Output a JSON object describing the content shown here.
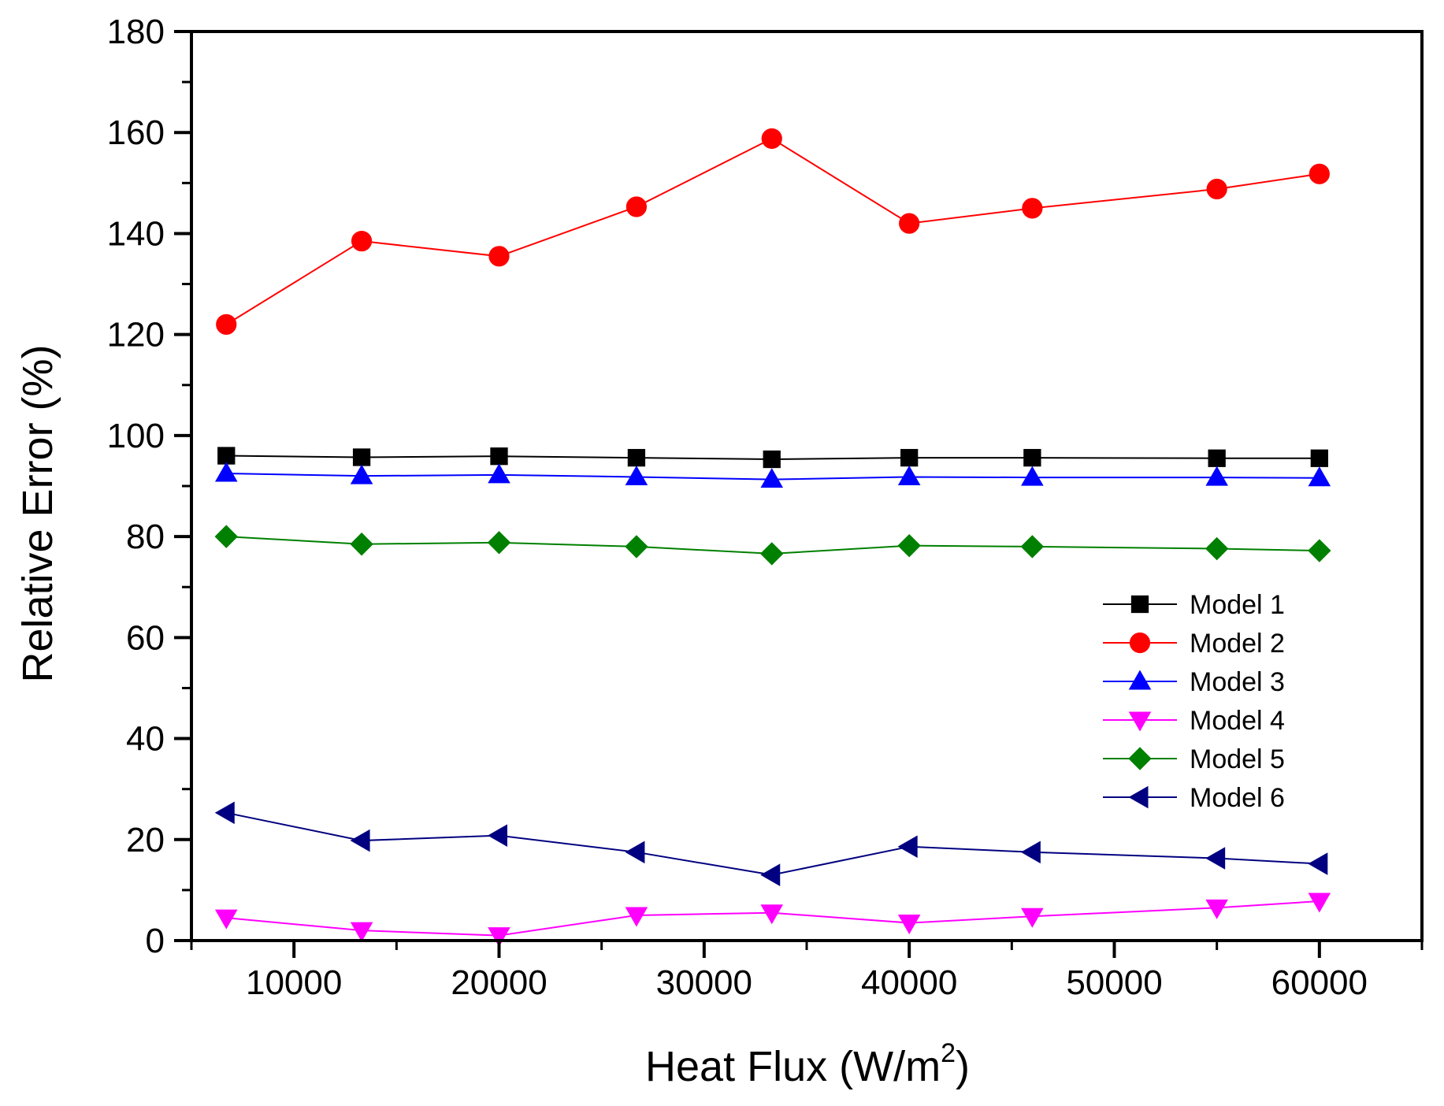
{
  "chart_data": {
    "type": "line",
    "title": "",
    "xlabel": "Heat Flux (W/m",
    "xlabel_sup": "2",
    "xlabel_close": ")",
    "ylabel": "Relative Error (%)",
    "xlim": [
      5000,
      65000
    ],
    "ylim": [
      0,
      180
    ],
    "x_ticks": [
      10000,
      20000,
      30000,
      40000,
      50000,
      60000
    ],
    "x_tick_labels": [
      "10000",
      "20000",
      "30000",
      "40000",
      "50000",
      "60000"
    ],
    "y_ticks": [
      0,
      20,
      40,
      60,
      80,
      100,
      120,
      140,
      160,
      180
    ],
    "y_tick_labels": [
      "0",
      "20",
      "40",
      "60",
      "80",
      "100",
      "120",
      "140",
      "160",
      "180"
    ],
    "x": [
      6700,
      13300,
      20000,
      26700,
      33300,
      40000,
      46000,
      55000,
      60000
    ],
    "legend_position": "right",
    "series": [
      {
        "name": "Model 1",
        "color": "#000000",
        "marker": "square",
        "values": [
          96,
          95.7,
          95.9,
          95.6,
          95.3,
          95.6,
          95.6,
          95.5,
          95.5
        ]
      },
      {
        "name": "Model 2",
        "color": "#ff0000",
        "marker": "circle",
        "values": [
          122,
          138.5,
          135.5,
          145.3,
          158.8,
          142,
          145,
          148.8,
          151.8
        ]
      },
      {
        "name": "Model 3",
        "color": "#0000ff",
        "marker": "triangle-up",
        "values": [
          92.5,
          92,
          92.2,
          91.8,
          91.3,
          91.8,
          91.7,
          91.7,
          91.6
        ]
      },
      {
        "name": "Model 4",
        "color": "#ff00ff",
        "marker": "triangle-down",
        "values": [
          4.5,
          2,
          1,
          5,
          5.5,
          3.5,
          4.8,
          6.5,
          7.8
        ]
      },
      {
        "name": "Model 5",
        "color": "#008000",
        "marker": "diamond",
        "values": [
          80,
          78.5,
          78.8,
          78,
          76.6,
          78.2,
          78,
          77.6,
          77.2
        ]
      },
      {
        "name": "Model 6",
        "color": "#000080",
        "marker": "triangle-left",
        "values": [
          25.3,
          19.8,
          20.8,
          17.5,
          13,
          18.6,
          17.5,
          16.3,
          15.2
        ]
      }
    ]
  }
}
